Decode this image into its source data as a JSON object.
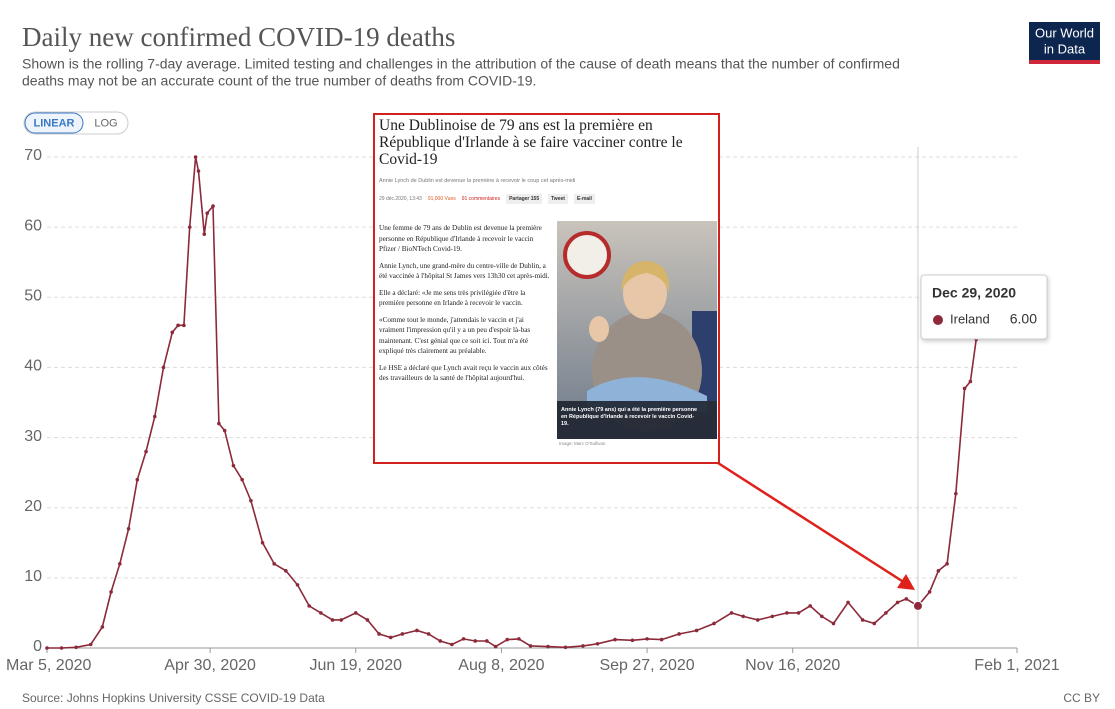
{
  "header": {
    "title": "Daily new confirmed COVID-19 deaths",
    "subtitle_line1": "Shown is the rolling 7-day average. Limited testing and challenges in the attribution of the cause of death means that the number of confirmed",
    "subtitle_line2": "deaths may not be an accurate count of the true number of deaths from COVID-19.",
    "logo_line1": "Our World",
    "logo_line2": "in Data"
  },
  "controls": {
    "linear": "LINEAR",
    "log": "LOG"
  },
  "chart_data": {
    "type": "line",
    "x": [
      "2020-03-05",
      "2020-03-10",
      "2020-03-15",
      "2020-03-20",
      "2020-03-24",
      "2020-03-27",
      "2020-03-30",
      "2020-04-02",
      "2020-04-05",
      "2020-04-08",
      "2020-04-11",
      "2020-04-14",
      "2020-04-17",
      "2020-04-19",
      "2020-04-21",
      "2020-04-23",
      "2020-04-25",
      "2020-04-26",
      "2020-04-28",
      "2020-04-29",
      "2020-05-01",
      "2020-05-03",
      "2020-05-05",
      "2020-05-08",
      "2020-05-11",
      "2020-05-14",
      "2020-05-18",
      "2020-05-22",
      "2020-05-26",
      "2020-05-30",
      "2020-06-03",
      "2020-06-07",
      "2020-06-11",
      "2020-06-14",
      "2020-06-19",
      "2020-06-23",
      "2020-06-27",
      "2020-07-01",
      "2020-07-05",
      "2020-07-10",
      "2020-07-14",
      "2020-07-18",
      "2020-07-22",
      "2020-07-26",
      "2020-07-30",
      "2020-08-03",
      "2020-08-06",
      "2020-08-10",
      "2020-08-14",
      "2020-08-18",
      "2020-08-24",
      "2020-08-30",
      "2020-09-05",
      "2020-09-10",
      "2020-09-16",
      "2020-09-22",
      "2020-09-27",
      "2020-10-02",
      "2020-10-08",
      "2020-10-14",
      "2020-10-20",
      "2020-10-26",
      "2020-10-30",
      "2020-11-04",
      "2020-11-09",
      "2020-11-14",
      "2020-11-18",
      "2020-11-22",
      "2020-11-26",
      "2020-11-30",
      "2020-12-05",
      "2020-12-10",
      "2020-12-14",
      "2020-12-18",
      "2020-12-22",
      "2020-12-25",
      "2020-12-29",
      "2021-01-02",
      "2021-01-05",
      "2021-01-08",
      "2021-01-11",
      "2021-01-14",
      "2021-01-16",
      "2021-01-18",
      "2021-01-20"
    ],
    "series": [
      {
        "name": "Ireland",
        "color": "#8c2a3a",
        "values": [
          0,
          0,
          0.1,
          0.5,
          3,
          8,
          12,
          17,
          24,
          28,
          33,
          40,
          45,
          46,
          46,
          60,
          70,
          68,
          59,
          62,
          63,
          32,
          31,
          26,
          24,
          21,
          15,
          12,
          11,
          9,
          6,
          5,
          4,
          4,
          5,
          4,
          2,
          1.5,
          2,
          2.5,
          2,
          1,
          0.5,
          1.3,
          1,
          1,
          0.2,
          1.2,
          1.3,
          0.3,
          0.2,
          0.1,
          0.3,
          0.6,
          1.2,
          1.1,
          1.3,
          1.2,
          2,
          2.5,
          3.5,
          5,
          4.5,
          4,
          4.5,
          5,
          5,
          6,
          4.5,
          3.5,
          6.5,
          4,
          3.5,
          5,
          6.5,
          7,
          6,
          8,
          11,
          12,
          22,
          37,
          38,
          44,
          46
        ]
      }
    ],
    "xlim": [
      "2020-03-05",
      "2021-02-01"
    ],
    "xticks": [
      {
        "value": "2020-03-05",
        "label": "Mar 5, 2020"
      },
      {
        "value": "2020-04-30",
        "label": "Apr 30, 2020"
      },
      {
        "value": "2020-06-19",
        "label": "Jun 19, 2020"
      },
      {
        "value": "2020-08-08",
        "label": "Aug 8, 2020"
      },
      {
        "value": "2020-09-27",
        "label": "Sep 27, 2020"
      },
      {
        "value": "2020-11-16",
        "label": "Nov 16, 2020"
      },
      {
        "value": "2021-02-01",
        "label": "Feb 1, 2021"
      }
    ],
    "ylim": [
      0,
      70
    ],
    "yticks": [
      0,
      10,
      20,
      30,
      40,
      50,
      60,
      70
    ],
    "grid": true,
    "tooltip": {
      "title": "Dec 29, 2020",
      "value": "6.00"
    }
  },
  "footer": {
    "source": "Source: Johns Hopkins University CSSE COVID-19 Data",
    "license": "CC BY"
  },
  "article": {
    "title_line1": "Une Dublinoise de 79 ans est la première en",
    "title_line2": "République d'Irlande à se faire vacciner contre le",
    "title_line3": "Covid-19",
    "byline": "Annie Lynch de Dublin est devenue la première à recevoir le coup cet après-midi",
    "date": "29 déc.2020, 13:43",
    "views": "91,000 Vues",
    "comments": "91 commentaires",
    "share": "Partager 155",
    "tweet": "Tweet",
    "email": "E-mail",
    "paragraphs": [
      "Une femme de 79 ans de Dublin est devenue la première personne en République d'Irlande à recevoir le vaccin Pfizer / BioNTech Covid-19.",
      "Annie Lynch, une grand-mère du centre-ville de Dublin, a été vaccinée à l'hôpital St James vers 13h30 cet après-midi.",
      "Elle a déclaré: «Je me sens très privilégiée d'être la première personne en Irlande à recevoir le vaccin.",
      "«Comme tout le monde, j'attendais le vaccin et j'ai vraiment l'impression qu'il y a un peu d'espoir là-bas maintenant. C'est génial que ce soit ici. Tout m'a été expliqué très clairement au préalable.",
      "Le HSE a déclaré que Lynch avait reçu le vaccin aux côtés des travailleurs de la santé de l'hôpital aujourd'hui."
    ],
    "caption": "Annie Lynch (79 ans) qui a été la première personne en République d'Irlande à recevoir le vaccin Covid-19.",
    "credit": "Image: Marc O'Sullivan"
  }
}
